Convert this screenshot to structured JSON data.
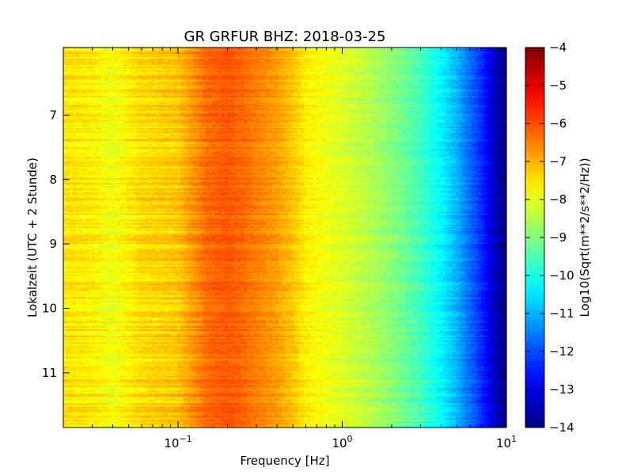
{
  "chart_data": {
    "type": "heatmap",
    "title": "GR GRFUR BHZ: 2018-03-25",
    "xlabel": "Frequency [Hz]",
    "ylabel": "Lokalzeit (UTC + 2 Stunde)",
    "x_scale": "log",
    "xlim": [
      0.02,
      10
    ],
    "ylim": [
      5.95,
      11.85
    ],
    "y_inverted": true,
    "x_ticks": [
      {
        "value": 0.1,
        "base": "10",
        "exp": "−1"
      },
      {
        "value": 1,
        "base": "10",
        "exp": "0"
      },
      {
        "value": 10,
        "base": "10",
        "exp": "1"
      }
    ],
    "y_ticks": [
      {
        "value": 7,
        "label": "7"
      },
      {
        "value": 8,
        "label": "8"
      },
      {
        "value": 9,
        "label": "9"
      },
      {
        "value": 10,
        "label": "10"
      },
      {
        "value": 11,
        "label": "11"
      }
    ],
    "colorbar": {
      "label": "Log10(Sqrt(m**2/s**2/Hz))",
      "range": [
        -14,
        -4
      ],
      "ticks": [
        {
          "value": -4,
          "label": "−4"
        },
        {
          "value": -5,
          "label": "−5"
        },
        {
          "value": -6,
          "label": "−6"
        },
        {
          "value": -7,
          "label": "−7"
        },
        {
          "value": -8,
          "label": "−8"
        },
        {
          "value": -9,
          "label": "−9"
        },
        {
          "value": -10,
          "label": "−10"
        },
        {
          "value": -11,
          "label": "−11"
        },
        {
          "value": -12,
          "label": "−12"
        },
        {
          "value": -13,
          "label": "−13"
        },
        {
          "value": -14,
          "label": "−14"
        }
      ],
      "colormap": "jet"
    },
    "profile": {
      "frequency_hz": [
        0.02,
        0.03,
        0.04,
        0.06,
        0.08,
        0.1,
        0.12,
        0.15,
        0.2,
        0.25,
        0.3,
        0.4,
        0.5,
        0.6,
        0.8,
        1.0,
        1.5,
        2.0,
        3.0,
        4.0,
        5.0,
        6.0,
        7.0,
        8.0,
        9.0,
        10.0
      ],
      "value": [
        -7.5,
        -7.6,
        -7.9,
        -7.4,
        -7.3,
        -7.2,
        -6.8,
        -6.3,
        -6.1,
        -6.3,
        -6.5,
        -6.8,
        -7.2,
        -7.6,
        -7.9,
        -8.1,
        -8.5,
        -8.9,
        -9.6,
        -10.3,
        -11.0,
        -11.7,
        -12.3,
        -13.0,
        -13.6,
        -14.0
      ]
    },
    "time_range_hours": [
      5.95,
      11.85
    ],
    "time_step_hours": 0.025
  }
}
